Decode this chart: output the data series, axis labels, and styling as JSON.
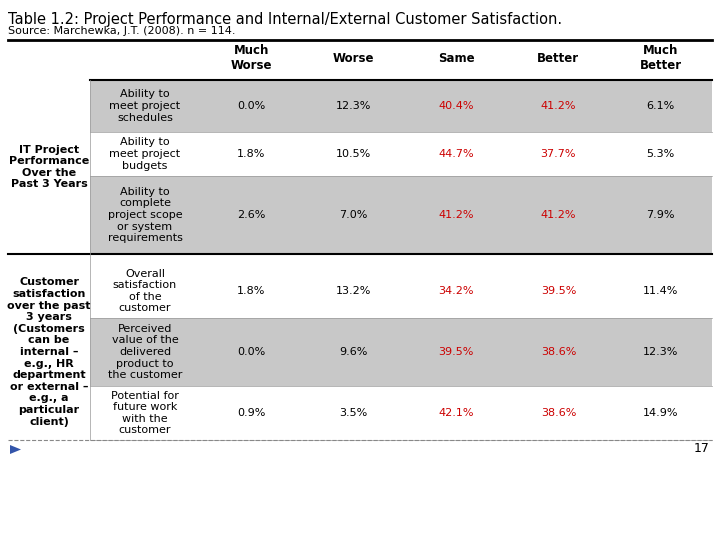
{
  "title": "Table 1.2: Project Performance and Internal/External Customer Satisfaction.",
  "source": "Source: Marchewka, J.T. (2008). n = 114.",
  "col_headers": [
    "Much\nWorse",
    "Worse",
    "Same",
    "Better",
    "Much\nBetter"
  ],
  "row_groups": [
    {
      "group_label": "IT Project\nPerformance\nOver the\nPast 3 Years",
      "rows": [
        {
          "label": "Ability to\nmeet project\nschedules",
          "values": [
            "0.0%",
            "12.3%",
            "40.4%",
            "41.2%",
            "6.1%"
          ],
          "highlight": [
            false,
            false,
            true,
            true,
            false
          ],
          "shaded": true
        },
        {
          "label": "Ability to\nmeet project\nbudgets",
          "values": [
            "1.8%",
            "10.5%",
            "44.7%",
            "37.7%",
            "5.3%"
          ],
          "highlight": [
            false,
            false,
            true,
            true,
            false
          ],
          "shaded": false
        },
        {
          "label": "Ability to\ncomplete\nproject scope\nor system\nrequirements",
          "values": [
            "2.6%",
            "7.0%",
            "41.2%",
            "41.2%",
            "7.9%"
          ],
          "highlight": [
            false,
            false,
            true,
            true,
            false
          ],
          "shaded": true
        }
      ]
    },
    {
      "group_label": "Customer\nsatisfaction\nover the past\n3 years\n(Customers\ncan be\ninternal –\ne.g., HR\ndepartment\nor external –\ne.g., a\nparticular\nclient)",
      "rows": [
        {
          "label": "Overall\nsatisfaction\nof the\ncustomer",
          "values": [
            "1.8%",
            "13.2%",
            "34.2%",
            "39.5%",
            "11.4%"
          ],
          "highlight": [
            false,
            false,
            true,
            true,
            false
          ],
          "shaded": false
        },
        {
          "label": "Perceived\nvalue of the\ndelivered\nproduct to\nthe customer",
          "values": [
            "0.0%",
            "9.6%",
            "39.5%",
            "38.6%",
            "12.3%"
          ],
          "highlight": [
            false,
            false,
            true,
            true,
            false
          ],
          "shaded": true
        },
        {
          "label": "Potential for\nfuture work\nwith the\ncustomer",
          "values": [
            "0.9%",
            "3.5%",
            "42.1%",
            "38.6%",
            "14.9%"
          ],
          "highlight": [
            false,
            false,
            true,
            true,
            false
          ],
          "shaded": false
        }
      ]
    }
  ],
  "page_number": "17",
  "bg_color": "#ffffff",
  "shaded_color": "#c8c8c8",
  "highlight_color": "#cc0000",
  "normal_color": "#000000",
  "title_fontsize": 10.5,
  "source_fontsize": 8,
  "header_fontsize": 8.5,
  "cell_fontsize": 8,
  "group_fontsize": 8
}
